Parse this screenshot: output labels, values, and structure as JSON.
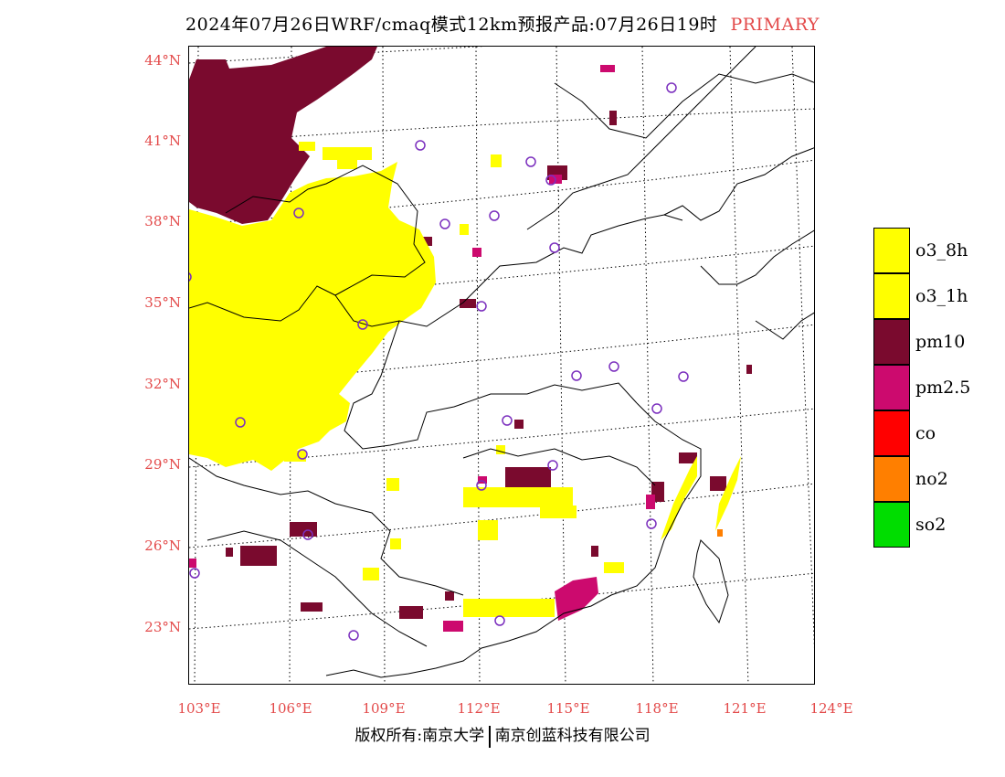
{
  "title": {
    "main": "2024年07月26日WRF/cmaq模式12km预报产品:07月26日19时",
    "tag": "PRIMARY"
  },
  "axes": {
    "lat_labels": [
      "44°N",
      "41°N",
      "38°N",
      "35°N",
      "32°N",
      "29°N",
      "26°N",
      "23°N"
    ],
    "lon_labels": [
      "103°E",
      "106°E",
      "109°E",
      "112°E",
      "115°E",
      "118°E",
      "121°E",
      "124°E"
    ]
  },
  "legend": [
    {
      "label": "o3_8h",
      "color": "#ffff00"
    },
    {
      "label": "o3_1h",
      "color": "#ffff00"
    },
    {
      "label": "pm10",
      "color": "#7a0a2e"
    },
    {
      "label": "pm2.5",
      "color": "#cc0a6e"
    },
    {
      "label": "co",
      "color": "#ff0000"
    },
    {
      "label": "no2",
      "color": "#ff7f00"
    },
    {
      "label": "so2",
      "color": "#00dd00"
    }
  ],
  "footer": {
    "left": "版权所有:南京大学",
    "right": "南京创蓝科技有限公司"
  }
}
